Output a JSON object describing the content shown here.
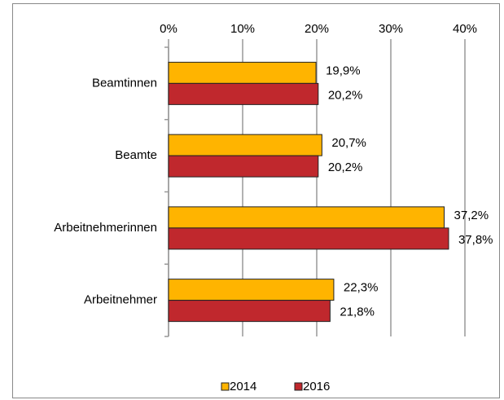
{
  "chart_data": {
    "type": "hbar",
    "categories": [
      "Beamtinnen",
      "Beamte",
      "Arbeitnehmerinnen",
      "Arbeitnehmer"
    ],
    "series": [
      {
        "name": "2014",
        "color": "#ffb400",
        "values": [
          19.9,
          20.7,
          37.2,
          22.3
        ],
        "value_labels": [
          "19,9%",
          "20,7%",
          "37,2%",
          "22,3%"
        ]
      },
      {
        "name": "2016",
        "color": "#c0282d",
        "values": [
          20.2,
          20.2,
          37.8,
          21.8
        ],
        "value_labels": [
          "20,2%",
          "20,2%",
          "37,8%",
          "21,8%"
        ]
      }
    ],
    "xlim": [
      0,
      40
    ],
    "xticks": [
      {
        "value": 0,
        "label": "0%"
      },
      {
        "value": 10,
        "label": "10%"
      },
      {
        "value": 20,
        "label": "20%"
      },
      {
        "value": 30,
        "label": "30%"
      },
      {
        "value": 40,
        "label": "40%"
      }
    ],
    "grid": true,
    "legend": "bottom"
  }
}
